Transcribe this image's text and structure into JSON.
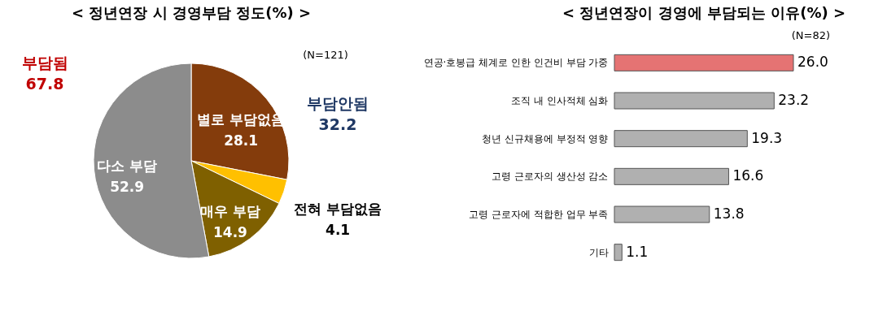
{
  "chart_data": [
    {
      "type": "pie",
      "title": "< 정년연장 시 경영부담 정도(%) >",
      "categories": [
        "별로 부담없음",
        "전혀 부담없음",
        "매우 부담",
        "다소 부담"
      ],
      "values": [
        28.1,
        4.1,
        14.9,
        52.9
      ],
      "colors": [
        "#843c0c",
        "#ffc000",
        "#7f6000",
        "#8c8c8c"
      ],
      "data_labels": true,
      "annotations": [
        "부담됨 67.8",
        "부담안됨 32.2",
        "(N=121)"
      ]
    },
    {
      "type": "bar",
      "orientation": "horizontal",
      "title": "< 정년연장이 경영에 부담되는 이유(%) >",
      "categories": [
        "연공·호봉급 체계로 인한 인건비 부담 가중",
        "조직 내 인사적체 심화",
        "청년 신규채용에 부정적 영향",
        "고령 근로자의 생산성 감소",
        "고령 근로자에 적합한 업무 부족",
        "기타"
      ],
      "values": [
        26.0,
        23.2,
        19.3,
        16.6,
        13.8,
        1.1
      ],
      "colors": [
        "#e57373",
        "#b0b0b0",
        "#b0b0b0",
        "#b0b0b0",
        "#b0b0b0",
        "#b0b0b0"
      ],
      "value_labels": [
        "26.0",
        "23.2",
        "19.3",
        "16.6",
        "13.8",
        "1.1"
      ],
      "annotations": [
        "(N=82)"
      ]
    }
  ]
}
